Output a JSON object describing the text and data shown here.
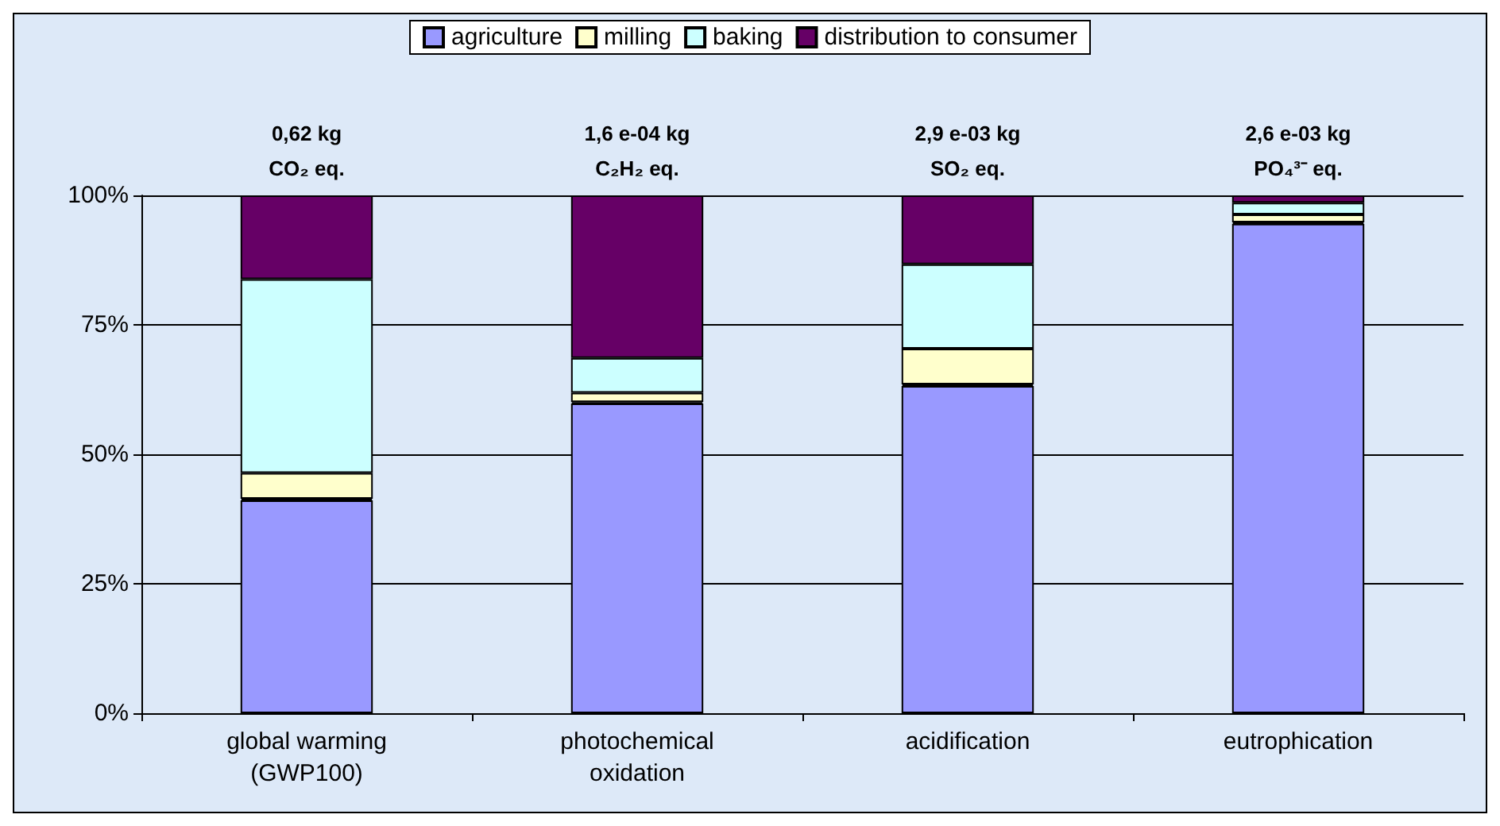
{
  "chart_data": {
    "type": "bar",
    "stacked": true,
    "categories": [
      "global warming\n(GWP100)",
      "photochemical\noxidation",
      "acidification",
      "eutrophication"
    ],
    "series": [
      {
        "name": "agriculture",
        "color": "#9999ff",
        "values": [
          41.1,
          59.8,
          63.2,
          94.5
        ]
      },
      {
        "color": "#993366",
        "values": [
          0.3,
          0.3,
          0.3,
          0.3
        ]
      },
      {
        "name": "milling",
        "color": "#ffffcc",
        "values": [
          5.0,
          1.8,
          6.9,
          1.5
        ]
      },
      {
        "name": "baking",
        "color": "#ccffff",
        "values": [
          37.4,
          6.7,
          16.3,
          2.3
        ]
      },
      {
        "name": "distribution to consumer",
        "color": "#660066",
        "values": [
          16.2,
          31.4,
          13.3,
          1.4
        ]
      }
    ],
    "ylim": [
      0,
      100
    ],
    "yticks": [
      {
        "value": 0,
        "label": "0%"
      },
      {
        "value": 25,
        "label": "25%"
      },
      {
        "value": 50,
        "label": "50%"
      },
      {
        "value": 75,
        "label": "75%"
      },
      {
        "value": 100,
        "label": "100%"
      }
    ],
    "grid": "y",
    "legend": "top",
    "annotations": [
      {
        "text": "0,62 kg\nCO₂ eq.",
        "x": "global warming\n(GWP100)",
        "y": 100
      },
      {
        "text": "1,6 e-04 kg\nC₂H₂ eq.",
        "x": "photochemical\noxidation",
        "y": 100
      },
      {
        "text": "2,9 e-03 kg\nSO₂ eq.",
        "x": "acidification",
        "y": 100
      },
      {
        "text": "2,6 e-03 kg\nPO₄³⁻ eq.",
        "x": "eutrophication",
        "y": 100
      }
    ]
  }
}
